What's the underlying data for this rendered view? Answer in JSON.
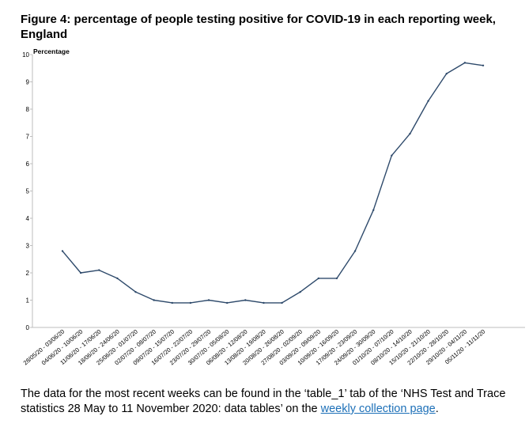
{
  "figure": {
    "title": "Figure 4: percentage of people testing positive for COVID-19 in each reporting week, England"
  },
  "caption": {
    "text_before": "The data for the most recent weeks can be found in the ‘table_1’ tab of the ‘NHS Test and Trace statistics 28 May to 11 November 2020: data tables’ on the ",
    "link_text": "weekly collection page",
    "text_after": "."
  },
  "chart_data": {
    "type": "line",
    "title": "",
    "ylabel": "Percentage",
    "xlabel": "",
    "ylim": [
      0,
      10
    ],
    "yticks": [
      0,
      1,
      2,
      3,
      4,
      5,
      6,
      7,
      8,
      9,
      10
    ],
    "grid": false,
    "line_color": "#2e4a6b",
    "categories": [
      "28/05/20 - 03/06/20",
      "04/06/20 - 10/06/20",
      "11/06/20 - 17/06/20",
      "18/06/20 - 24/06/20",
      "25/06/20 - 01/07/20",
      "02/07/20 - 08/07/20",
      "09/07/20 - 15/07/20",
      "16/07/20 - 22/07/20",
      "23/07/20 - 29/07/20",
      "30/07/20 - 05/08/20",
      "06/08/20 - 12/08/20",
      "13/08/20 - 19/08/20",
      "20/08/20 - 26/08/20",
      "27/08/20 - 02/09/20",
      "03/09/20 - 09/09/20",
      "10/09/20 - 16/09/20",
      "17/09/20 - 23/09/20",
      "24/09/20 - 30/09/20",
      "01/10/20 - 07/10/20",
      "08/10/20 - 14/10/20",
      "15/10/20 - 21/10/20",
      "22/10/20 - 28/10/20",
      "29/10/20 - 04/11/20",
      "05/11/20 - 11/11/20"
    ],
    "values": [
      2.8,
      2.0,
      2.1,
      1.8,
      1.3,
      1.0,
      0.9,
      0.9,
      1.0,
      0.9,
      1.0,
      0.9,
      0.9,
      1.3,
      1.8,
      1.8,
      2.8,
      4.3,
      6.3,
      7.1,
      8.3,
      9.3,
      9.7,
      9.6
    ]
  }
}
